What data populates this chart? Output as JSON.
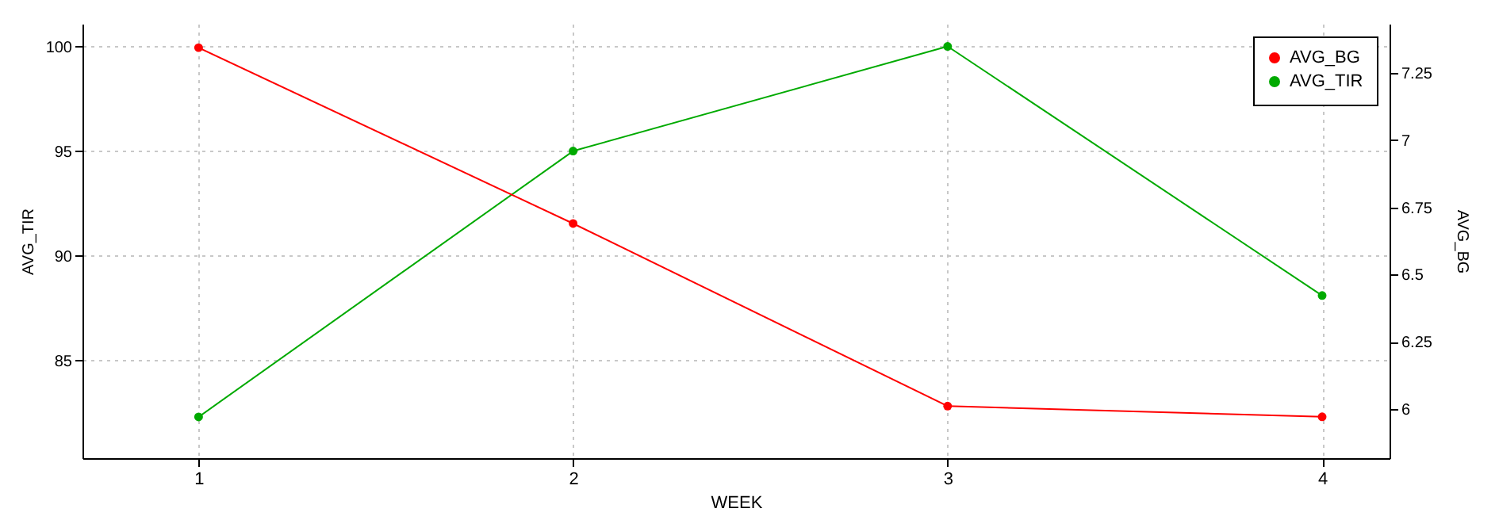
{
  "chart_data": {
    "type": "line",
    "xlabel": "WEEK",
    "ylabel": "AVG_TIR",
    "y2label": "AVG_BG",
    "x": [
      1,
      2,
      3,
      4
    ],
    "xlim": [
      0.69,
      4.18
    ],
    "xticks": [
      1,
      2,
      3,
      4
    ],
    "ylim": [
      80.33,
      101.08
    ],
    "yticks": [
      85,
      90,
      95,
      100
    ],
    "y2lim": [
      5.816,
      7.434
    ],
    "y2ticks": [
      6,
      6.25,
      6.5,
      6.75,
      7,
      7.25
    ],
    "series": [
      {
        "name": "AVG_BG",
        "color": "#ff0000",
        "axis": "y2",
        "values": [
          7.345,
          6.69,
          6.01,
          5.97
        ]
      },
      {
        "name": "AVG_TIR",
        "color": "#00aa00",
        "values": [
          82.3,
          95,
          100,
          88.1
        ]
      }
    ],
    "grid": true,
    "legend": "top right",
    "marker": "circle",
    "line_style": "solid"
  }
}
